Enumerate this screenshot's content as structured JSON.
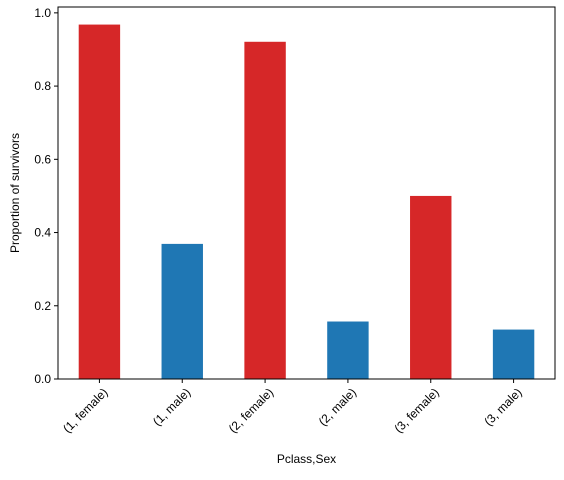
{
  "colors": {
    "female": "#d62728",
    "male": "#1f77b4"
  },
  "chart_data": {
    "type": "bar",
    "title": "",
    "xlabel": "Pclass,Sex",
    "ylabel": "Proportion of survivors",
    "categories": [
      "(1, female)",
      "(1, male)",
      "(2, female)",
      "(2, male)",
      "(3, female)",
      "(3, male)"
    ],
    "values": [
      0.968,
      0.369,
      0.921,
      0.157,
      0.5,
      0.135
    ],
    "bar_colors": [
      "#d62728",
      "#1f77b4",
      "#d62728",
      "#1f77b4",
      "#d62728",
      "#1f77b4"
    ],
    "ylim": [
      0,
      1.016
    ],
    "yticks": [
      0.0,
      0.2,
      0.4,
      0.6,
      0.8,
      1.0
    ],
    "ytick_labels": [
      "0.0",
      "0.2",
      "0.4",
      "0.6",
      "0.8",
      "1.0"
    ],
    "grid": false,
    "legend": "none"
  }
}
